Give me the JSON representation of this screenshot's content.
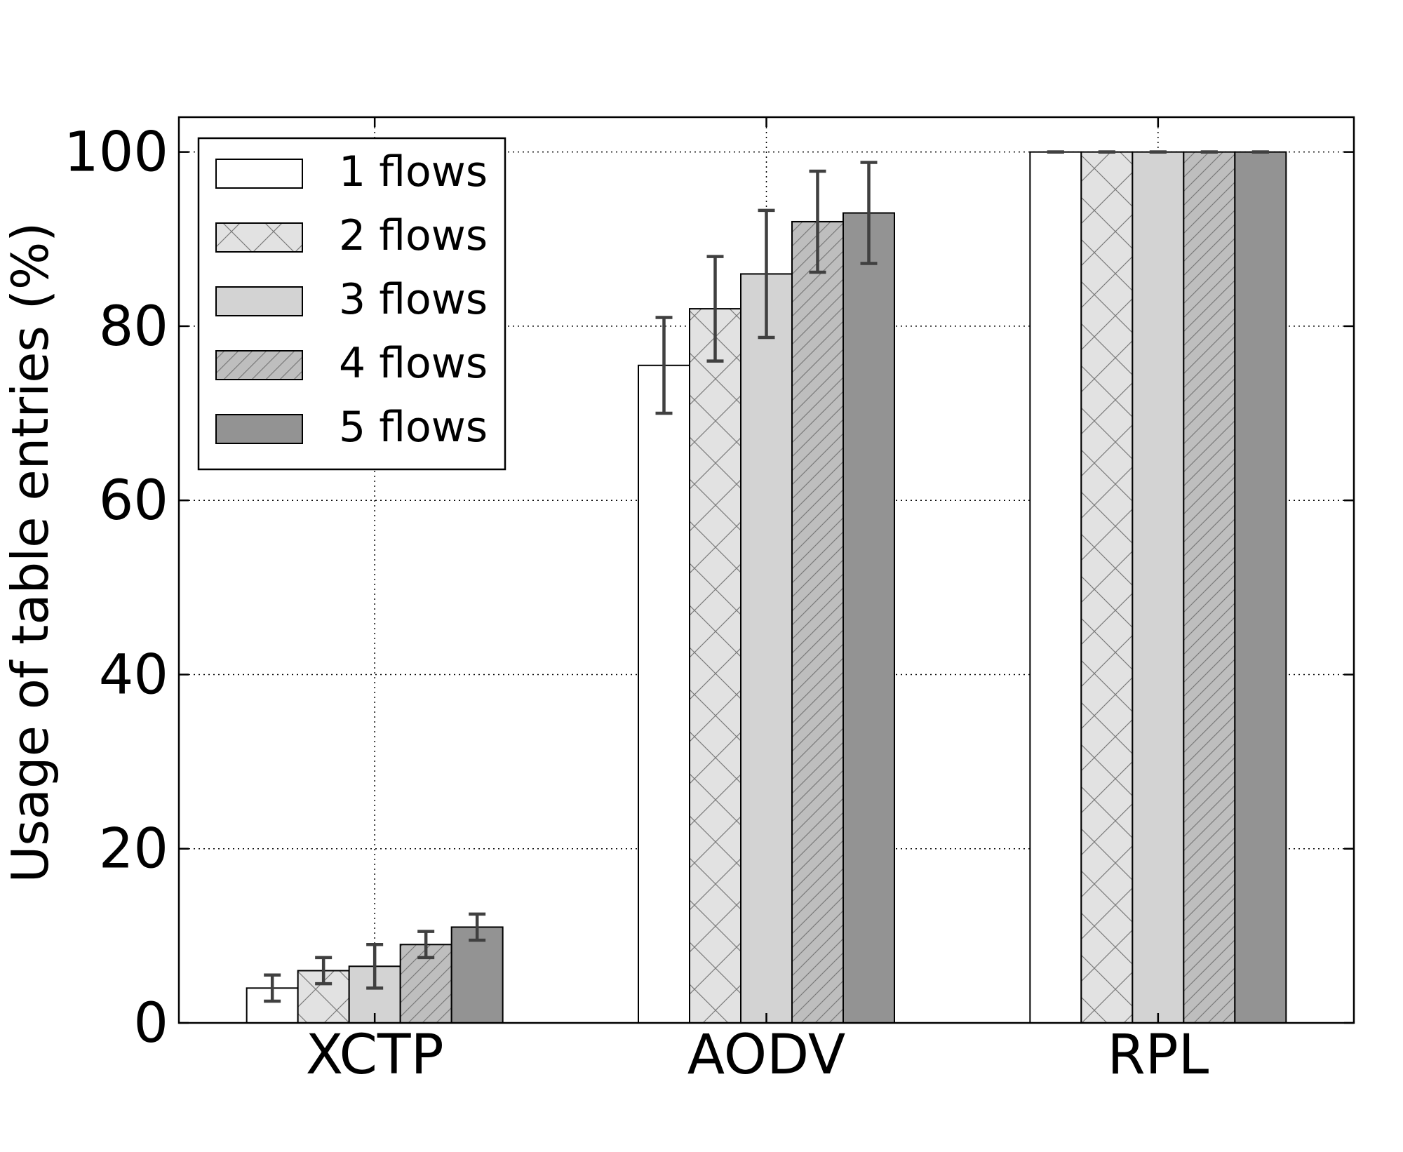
{
  "chart_data": {
    "type": "bar",
    "title": "",
    "xlabel": "",
    "ylabel": "Usage of table entries (%)",
    "ylim": [
      0,
      104
    ],
    "yticks": [
      0,
      20,
      40,
      60,
      80,
      100
    ],
    "grid": true,
    "legend_position": "top-left",
    "categories": [
      "XCTP",
      "AODV",
      "RPL"
    ],
    "series": [
      {
        "name": "1 flows",
        "values": [
          4.0,
          75.5,
          100
        ],
        "errors": [
          1.5,
          5.5,
          0
        ],
        "color": "#ffffff",
        "hatch": "none"
      },
      {
        "name": "2 flows",
        "values": [
          6.0,
          82.0,
          100
        ],
        "errors": [
          1.5,
          6.0,
          0
        ],
        "color": "#e2e2e2",
        "hatch": "cross"
      },
      {
        "name": "3 flows",
        "values": [
          6.5,
          86.0,
          100
        ],
        "errors": [
          2.5,
          7.3,
          0
        ],
        "color": "#d3d3d3",
        "hatch": "none"
      },
      {
        "name": "4 flows",
        "values": [
          9.0,
          92.0,
          100
        ],
        "errors": [
          1.5,
          5.8,
          0
        ],
        "color": "#bebebe",
        "hatch": "diagonal"
      },
      {
        "name": "5 flows",
        "values": [
          11.0,
          93.0,
          100
        ],
        "errors": [
          1.5,
          5.8,
          0
        ],
        "color": "#939393",
        "hatch": "none"
      }
    ]
  }
}
